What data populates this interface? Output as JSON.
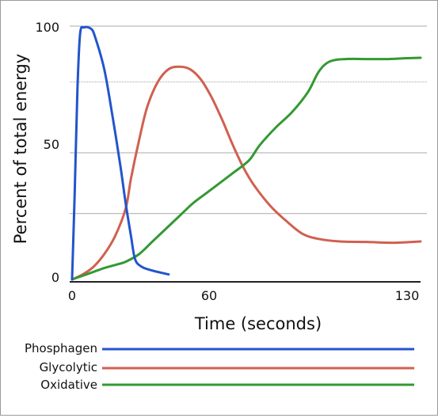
{
  "chart_data": {
    "type": "line",
    "title": "",
    "xlabel": "Time (seconds)",
    "ylabel": "Percent of total energy",
    "xlim": [
      0,
      130
    ],
    "ylim": [
      0,
      100
    ],
    "x_ticks": [
      "0",
      "60",
      "130"
    ],
    "y_ticks": [
      "0",
      "50",
      "100"
    ],
    "y_gridlines": [
      26,
      50,
      78,
      100
    ],
    "grid": true,
    "legend_placement": "below chart",
    "series": [
      {
        "name": "Phosphagen",
        "color": "#2255cc",
        "points": [
          [
            0,
            0
          ],
          [
            1,
            35
          ],
          [
            2,
            75
          ],
          [
            3,
            97
          ],
          [
            4.5,
            99.5
          ],
          [
            7,
            99
          ],
          [
            8.5,
            96
          ],
          [
            12,
            83
          ],
          [
            15,
            65
          ],
          [
            18,
            45
          ],
          [
            20,
            30
          ],
          [
            22,
            17
          ],
          [
            23.5,
            8
          ],
          [
            26,
            5
          ],
          [
            30,
            3.5
          ],
          [
            36,
            2
          ]
        ]
      },
      {
        "name": "Glycolytic",
        "color": "#d06050",
        "points": [
          [
            0,
            0
          ],
          [
            4,
            2
          ],
          [
            8,
            5
          ],
          [
            12,
            10
          ],
          [
            16,
            17
          ],
          [
            20,
            28
          ],
          [
            22,
            40
          ],
          [
            25,
            55
          ],
          [
            28,
            68
          ],
          [
            32,
            78
          ],
          [
            36,
            83
          ],
          [
            40,
            84
          ],
          [
            44,
            83
          ],
          [
            48,
            79
          ],
          [
            52,
            72
          ],
          [
            56,
            63
          ],
          [
            60,
            53
          ],
          [
            64,
            44
          ],
          [
            68,
            37
          ],
          [
            74,
            29
          ],
          [
            80,
            23
          ],
          [
            86,
            18
          ],
          [
            92,
            16
          ],
          [
            100,
            15
          ],
          [
            110,
            14.8
          ],
          [
            120,
            14.5
          ],
          [
            130,
            15
          ]
        ]
      },
      {
        "name": "Oxidative",
        "color": "#339933",
        "points": [
          [
            0,
            0
          ],
          [
            4,
            1.5
          ],
          [
            8,
            3
          ],
          [
            12,
            4.5
          ],
          [
            17,
            6
          ],
          [
            20,
            7
          ],
          [
            25,
            10
          ],
          [
            30,
            15
          ],
          [
            35,
            20
          ],
          [
            40,
            25
          ],
          [
            45,
            30
          ],
          [
            50,
            34
          ],
          [
            55,
            38
          ],
          [
            60,
            42
          ],
          [
            66,
            47
          ],
          [
            70,
            53
          ],
          [
            76,
            60
          ],
          [
            82,
            66
          ],
          [
            88,
            74
          ],
          [
            92,
            82
          ],
          [
            96,
            86
          ],
          [
            102,
            87
          ],
          [
            110,
            87
          ],
          [
            118,
            87
          ],
          [
            124,
            87.3
          ],
          [
            130,
            87.5
          ]
        ]
      }
    ]
  }
}
